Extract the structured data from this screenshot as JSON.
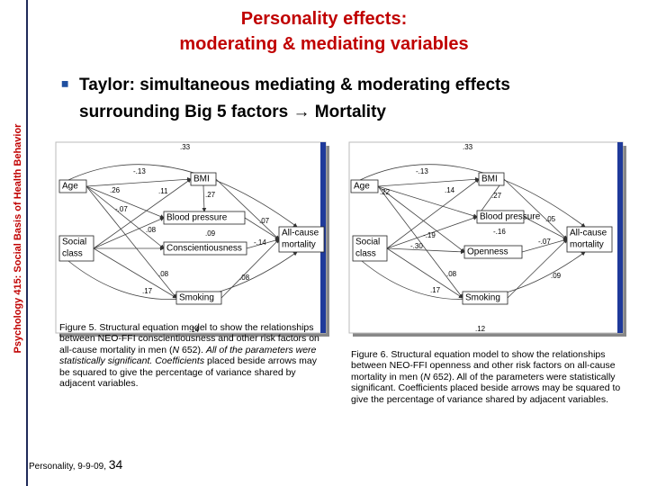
{
  "side_label": "Psychology 415: Social Basis of Health Behavior",
  "title": [
    "Personality effects:",
    "moderating & mediating variables"
  ],
  "bullet": [
    "Taylor: simultaneous mediating & moderating effects",
    "surrounding Big 5 factors → Mortality"
  ],
  "diagrams": [
    {
      "nodes": [
        [
          "Age"
        ],
        [
          "BMI"
        ],
        [
          "Blood pressure"
        ],
        [
          "Social",
          "class"
        ],
        [
          "Conscientiousness"
        ],
        [
          "All-cause",
          "mortality"
        ],
        [
          "Smoking"
        ]
      ],
      "coefficients": [
        ".33",
        "-.13",
        ".26",
        ".11",
        ".27",
        "-.07",
        ".07",
        ".08",
        ".09",
        "-.14",
        ".08",
        ".08",
        ".17",
        ".14"
      ],
      "caption": [
        {
          "text": "Figure 5. Structural equation model to show the relationships between NEO-FFI conscientiousness and other risk factors on all-cause mortality in men ("
        },
        {
          "text": "N",
          "italic": true
        },
        {
          "text": " 652). "
        },
        {
          "text": "All of the parameters were statistically significant. Coefficients",
          "italic": true
        },
        {
          "text": " placed beside arrows may be squared to give the percentage of variance shared by adjacent variables."
        }
      ]
    },
    {
      "nodes": [
        [
          "Age"
        ],
        [
          "BMI"
        ],
        [
          "Blood pressure"
        ],
        [
          "Social",
          "class"
        ],
        [
          "Openness"
        ],
        [
          "All-cause",
          "mortality"
        ],
        [
          "Smoking"
        ]
      ],
      "coefficients": [
        ".33",
        "-.13",
        ".22",
        ".14",
        ".27",
        ".05",
        "-.19",
        "-.16",
        "-.30",
        "-.07",
        ".08",
        ".09",
        ".17",
        ".12"
      ],
      "caption": [
        {
          "text": "Figure 6. Structural equation model to show the relationships between NEO-FFI openness and other risk factors on all-cause mortality in men ("
        },
        {
          "text": "N",
          "italic": true
        },
        {
          "text": " 652). All of the parameters were statistically significant. Coefficients placed beside arrows may be squared to give the percentage of variance shared by adjacent variables."
        }
      ]
    }
  ],
  "footer": {
    "text": "Personality, 9-9-09, ",
    "page": "34"
  }
}
